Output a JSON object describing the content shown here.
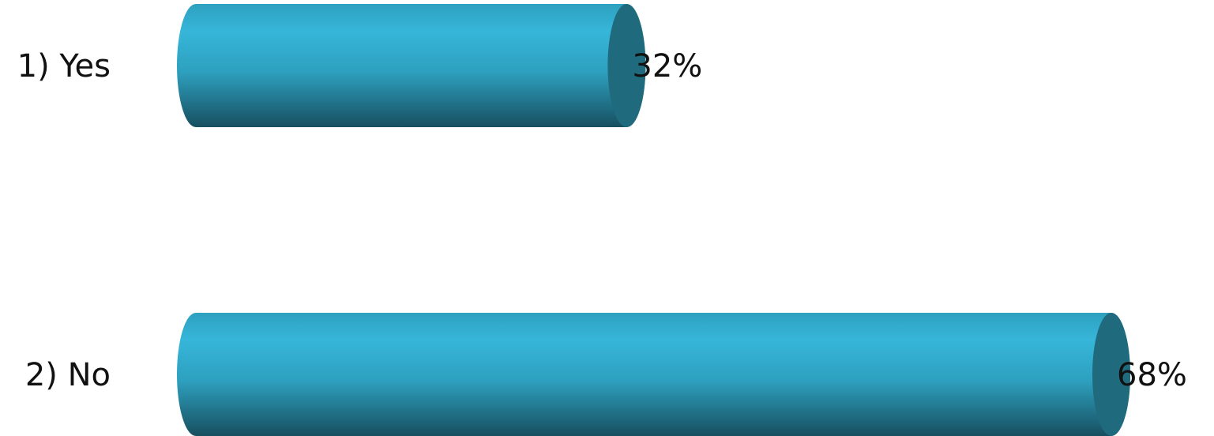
{
  "colors": {
    "bar_light": "#36b6d9",
    "bar_mid": "#2ea0bf",
    "bar_dark": "#174f5f",
    "cap": "#1f6a7d",
    "text": "#111111"
  },
  "chart_data": {
    "type": "bar",
    "orientation": "horizontal",
    "style": "3d-cylinder",
    "categories": [
      "1) Yes",
      "2) No"
    ],
    "values": [
      32,
      68
    ],
    "value_labels": [
      "32%",
      "68%"
    ],
    "unit": "%",
    "xlim": [
      0,
      100
    ],
    "grid": false,
    "legend": "none"
  }
}
